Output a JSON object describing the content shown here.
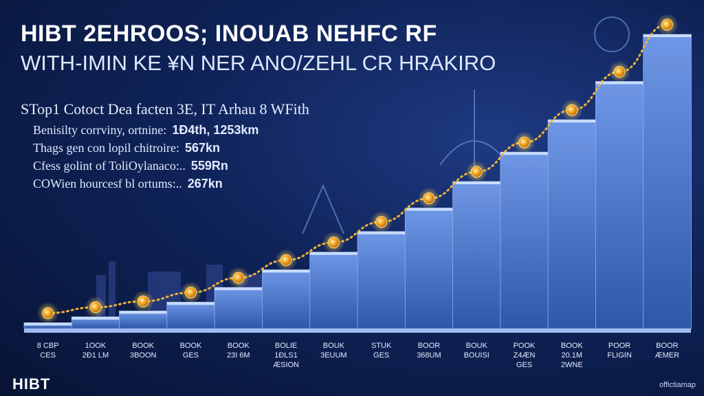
{
  "header": {
    "title_line1": "HIBT 2EHROOS; INOUAB NEHFC RF",
    "title_line2": "WITH-IMIN KE ¥N NER ANO/ZEHL CR HRAKIRO",
    "subheading": "STop1 Cotoct Dea facten 3E, IT Arhau 8 WFith"
  },
  "stats": [
    {
      "label": "Benisilty corrviny, ortnine:",
      "value": "1Ð4th, 1253km"
    },
    {
      "label": "Thags gen con lopil chitroire:",
      "value": "567kn"
    },
    {
      "label": "Cfess golint of ToliOylanaco:..",
      "value": "559Rn"
    },
    {
      "label": "COWien hourcesf bl ortums:..",
      "value": "267kn"
    }
  ],
  "branding": {
    "logo": "HIBT",
    "watermark": "offictiamap"
  },
  "colors": {
    "background": "#0f2358",
    "steps_face": "#5d86d6",
    "steps_top": "#c8dcff",
    "node_fill": "#f5a623",
    "node_glow": "#ffd54a",
    "dotted_line": "#f2b233"
  },
  "chart_data": {
    "type": "line",
    "title": "",
    "xlabel": "",
    "ylabel": "",
    "categories": [
      "8 CBP\nCES",
      "1OOK\n2Ð1 LM",
      "BOOK\n3BOON",
      "BOOK\nGES",
      "BOOK\n23I 6M",
      "BOLIE\n1ÐLS1\nÆSION",
      "BOUK\n3EUUM",
      "STUK\nGES",
      "BOOR\n368UM",
      "BOUK\nBOUISI",
      "POOK\nZ4ÆN\nGES",
      "BOOK\n20.1M\n2WNE",
      "POOR\nFLIGIN",
      "BOOR\nÆMER"
    ],
    "series": [
      {
        "values": [
          2,
          4,
          6,
          9,
          14,
          20,
          26,
          33,
          41,
          50,
          60,
          71,
          84,
          100
        ]
      }
    ],
    "ylim": [
      0,
      100
    ],
    "grid": false,
    "legend": "none"
  }
}
